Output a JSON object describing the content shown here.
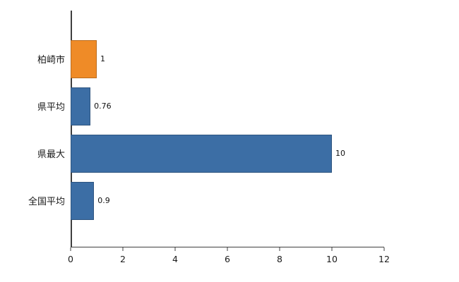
{
  "chart_data": {
    "type": "bar",
    "orientation": "horizontal",
    "title": "",
    "xlabel": "",
    "ylabel": "",
    "categories": [
      "柏崎市",
      "県平均",
      "県最大",
      "全国平均"
    ],
    "values": [
      1,
      0.76,
      10,
      0.9
    ],
    "value_labels": [
      "1",
      "0.76",
      "10",
      "0.9"
    ],
    "bar_colors": [
      "#EF8B27",
      "#3C6EA5",
      "#3C6EA5",
      "#3C6EA5"
    ],
    "xlim": [
      0,
      12
    ],
    "x_ticks": [
      0,
      2,
      4,
      6,
      8,
      10,
      12
    ],
    "x_tick_labels": [
      "0",
      "2",
      "4",
      "6",
      "8",
      "10",
      "12"
    ],
    "grid": false,
    "legend": false,
    "axis_color": "#3f3f3f",
    "background_color": "#ffffff"
  }
}
